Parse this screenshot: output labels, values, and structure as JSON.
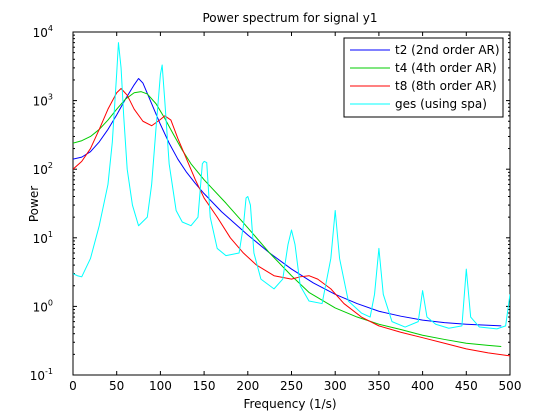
{
  "chart_data": {
    "type": "line",
    "title": "Power spectrum for signal y1",
    "xlabel": "Frequency (1/s)",
    "ylabel": "Power",
    "xlim": [
      0,
      500
    ],
    "ylim": [
      0.1,
      10000
    ],
    "yscale": "log",
    "grid": false,
    "legend_position": "top-right",
    "x_ticks": [
      0,
      50,
      100,
      150,
      200,
      250,
      300,
      350,
      400,
      450,
      500
    ],
    "x_tick_labels": [
      "0",
      "50",
      "100",
      "150",
      "200",
      "250",
      "300",
      "350",
      "400",
      "450",
      "500"
    ],
    "y_ticks": [
      {
        "value": 0.1,
        "base": "10",
        "exp": "-1"
      },
      {
        "value": 1,
        "base": "10",
        "exp": "0"
      },
      {
        "value": 10,
        "base": "10",
        "exp": "1"
      },
      {
        "value": 100,
        "base": "10",
        "exp": "2"
      },
      {
        "value": 1000,
        "base": "10",
        "exp": "3"
      },
      {
        "value": 10000,
        "base": "10",
        "exp": "4"
      }
    ],
    "series": [
      {
        "name": "t2 (2nd order AR)",
        "color": "#0000ff",
        "points": [
          [
            0,
            140
          ],
          [
            10,
            150
          ],
          [
            20,
            180
          ],
          [
            30,
            250
          ],
          [
            40,
            380
          ],
          [
            50,
            620
          ],
          [
            60,
            1050
          ],
          [
            70,
            1700
          ],
          [
            75,
            2100
          ],
          [
            80,
            1800
          ],
          [
            90,
            900
          ],
          [
            100,
            450
          ],
          [
            110,
            240
          ],
          [
            120,
            140
          ],
          [
            130,
            90
          ],
          [
            140,
            62
          ],
          [
            150,
            44
          ],
          [
            170,
            24
          ],
          [
            200,
            11
          ],
          [
            225,
            6
          ],
          [
            250,
            3.5
          ],
          [
            275,
            2.2
          ],
          [
            300,
            1.5
          ],
          [
            325,
            1.1
          ],
          [
            350,
            0.85
          ],
          [
            375,
            0.72
          ],
          [
            400,
            0.63
          ],
          [
            425,
            0.58
          ],
          [
            450,
            0.55
          ],
          [
            475,
            0.53
          ],
          [
            490,
            0.52
          ]
        ]
      },
      {
        "name": "t4 (4th order AR)",
        "color": "#00cc00",
        "points": [
          [
            0,
            240
          ],
          [
            10,
            260
          ],
          [
            20,
            300
          ],
          [
            30,
            380
          ],
          [
            40,
            520
          ],
          [
            50,
            750
          ],
          [
            60,
            1050
          ],
          [
            70,
            1300
          ],
          [
            78,
            1350
          ],
          [
            85,
            1250
          ],
          [
            95,
            900
          ],
          [
            105,
            550
          ],
          [
            115,
            320
          ],
          [
            125,
            190
          ],
          [
            135,
            120
          ],
          [
            150,
            70
          ],
          [
            175,
            32
          ],
          [
            200,
            14
          ],
          [
            225,
            6
          ],
          [
            250,
            2.8
          ],
          [
            270,
            1.6
          ],
          [
            300,
            0.95
          ],
          [
            325,
            0.7
          ],
          [
            350,
            0.55
          ],
          [
            375,
            0.46
          ],
          [
            400,
            0.38
          ],
          [
            425,
            0.33
          ],
          [
            450,
            0.29
          ],
          [
            475,
            0.27
          ],
          [
            490,
            0.26
          ]
        ]
      },
      {
        "name": "t8 (8th order AR)",
        "color": "#ff0000",
        "points": [
          [
            0,
            100
          ],
          [
            10,
            130
          ],
          [
            20,
            200
          ],
          [
            30,
            380
          ],
          [
            40,
            750
          ],
          [
            50,
            1300
          ],
          [
            55,
            1500
          ],
          [
            62,
            1200
          ],
          [
            70,
            750
          ],
          [
            80,
            500
          ],
          [
            90,
            430
          ],
          [
            100,
            530
          ],
          [
            105,
            600
          ],
          [
            112,
            520
          ],
          [
            120,
            280
          ],
          [
            130,
            140
          ],
          [
            140,
            70
          ],
          [
            150,
            38
          ],
          [
            165,
            20
          ],
          [
            180,
            10
          ],
          [
            195,
            6
          ],
          [
            210,
            4
          ],
          [
            230,
            2.8
          ],
          [
            250,
            2.5
          ],
          [
            260,
            2.7
          ],
          [
            270,
            2.8
          ],
          [
            280,
            2.5
          ],
          [
            295,
            1.8
          ],
          [
            310,
            1.1
          ],
          [
            330,
            0.7
          ],
          [
            350,
            0.52
          ],
          [
            375,
            0.42
          ],
          [
            400,
            0.35
          ],
          [
            425,
            0.29
          ],
          [
            450,
            0.24
          ],
          [
            475,
            0.21
          ],
          [
            500,
            0.19
          ]
        ]
      },
      {
        "name": "ges (using spa)",
        "color": "#00ffff",
        "points": [
          [
            0,
            3
          ],
          [
            5,
            2.8
          ],
          [
            10,
            2.7
          ],
          [
            20,
            5
          ],
          [
            30,
            15
          ],
          [
            40,
            60
          ],
          [
            45,
            250
          ],
          [
            50,
            2500
          ],
          [
            52,
            7000
          ],
          [
            55,
            3000
          ],
          [
            58,
            600
          ],
          [
            62,
            100
          ],
          [
            68,
            30
          ],
          [
            75,
            15
          ],
          [
            85,
            20
          ],
          [
            90,
            60
          ],
          [
            95,
            400
          ],
          [
            100,
            2400
          ],
          [
            102,
            3300
          ],
          [
            105,
            1000
          ],
          [
            110,
            120
          ],
          [
            118,
            25
          ],
          [
            125,
            17
          ],
          [
            135,
            15
          ],
          [
            143,
            20
          ],
          [
            148,
            120
          ],
          [
            150,
            130
          ],
          [
            153,
            125
          ],
          [
            157,
            20
          ],
          [
            165,
            7
          ],
          [
            175,
            5.5
          ],
          [
            190,
            6
          ],
          [
            195,
            15
          ],
          [
            198,
            38
          ],
          [
            200,
            40
          ],
          [
            203,
            30
          ],
          [
            207,
            6
          ],
          [
            215,
            2.5
          ],
          [
            230,
            1.8
          ],
          [
            240,
            2.5
          ],
          [
            246,
            8
          ],
          [
            250,
            13
          ],
          [
            254,
            8
          ],
          [
            260,
            2
          ],
          [
            270,
            1.2
          ],
          [
            285,
            1.1
          ],
          [
            295,
            5
          ],
          [
            300,
            25
          ],
          [
            305,
            5
          ],
          [
            315,
            1.2
          ],
          [
            330,
            0.8
          ],
          [
            340,
            0.7
          ],
          [
            345,
            1.5
          ],
          [
            350,
            7
          ],
          [
            355,
            1.5
          ],
          [
            365,
            0.6
          ],
          [
            380,
            0.5
          ],
          [
            395,
            0.6
          ],
          [
            400,
            1.7
          ],
          [
            405,
            0.7
          ],
          [
            415,
            0.55
          ],
          [
            430,
            0.48
          ],
          [
            445,
            0.52
          ],
          [
            450,
            3.5
          ],
          [
            455,
            0.7
          ],
          [
            465,
            0.5
          ],
          [
            485,
            0.47
          ],
          [
            495,
            0.52
          ],
          [
            500,
            1.5
          ]
        ]
      }
    ]
  }
}
